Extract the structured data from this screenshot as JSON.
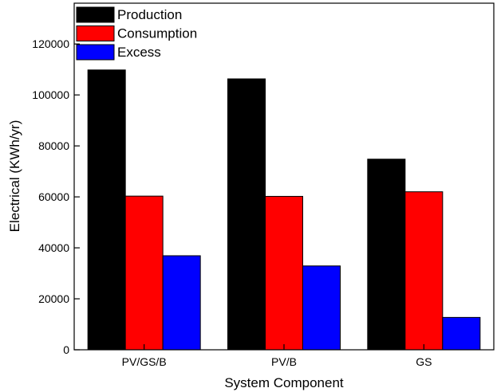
{
  "chart_data": {
    "type": "bar",
    "xlabel": "System Component",
    "ylabel": "Electrical (KWh/yr)",
    "categories": [
      "PV/GS/B",
      "PV/B",
      "GS"
    ],
    "series": [
      {
        "name": "Production",
        "color": "#000000",
        "values": [
          109800,
          106300,
          74800
        ]
      },
      {
        "name": "Consumption",
        "color": "#ff0000",
        "values": [
          60300,
          60200,
          62000
        ]
      },
      {
        "name": "Excess",
        "color": "#0000ff",
        "values": [
          36900,
          32900,
          12700
        ]
      }
    ],
    "ylim": [
      0,
      136000
    ],
    "yticks": [
      0,
      20000,
      40000,
      60000,
      80000,
      100000,
      120000
    ],
    "legend_position": "top-left",
    "grid": false
  }
}
